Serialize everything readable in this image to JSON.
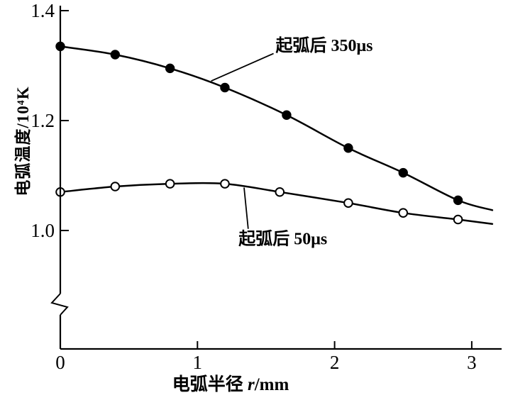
{
  "page": {
    "background": "#ffffff"
  },
  "colors": {
    "stroke": "#000000",
    "background": "#ffffff"
  },
  "chart_data": {
    "type": "line",
    "title": "",
    "xlabel": {
      "prefix": "电弧半径 ",
      "var": "r",
      "suffix": "/mm"
    },
    "ylabel": "电弧温度/10⁴K",
    "xlim": [
      0,
      3.2
    ],
    "ylim": [
      1.0,
      1.4
    ],
    "grid": false,
    "y_axis_break": true,
    "x_ticks": [
      "0",
      "1",
      "2",
      "3"
    ],
    "x_tick_values": [
      0,
      1,
      2,
      3
    ],
    "y_ticks": [
      "1.0",
      "1.2",
      "1.4"
    ],
    "y_tick_values": [
      1.0,
      1.2,
      1.4
    ],
    "series": [
      {
        "name": "起弧后 350μs",
        "marker": "filled-circle",
        "color": "#000000",
        "x": [
          0,
          0.4,
          0.8,
          1.2,
          1.65,
          2.1,
          2.5,
          2.9
        ],
        "y": [
          1.335,
          1.32,
          1.295,
          1.26,
          1.21,
          1.15,
          1.105,
          1.055
        ],
        "line_tail": {
          "x": 3.15,
          "y": 1.037
        }
      },
      {
        "name": "起弧后 50μs",
        "marker": "open-circle",
        "color": "#000000",
        "x": [
          0,
          0.4,
          0.8,
          1.2,
          1.6,
          2.1,
          2.5,
          2.9
        ],
        "y": [
          1.07,
          1.08,
          1.085,
          1.085,
          1.07,
          1.05,
          1.032,
          1.02
        ],
        "line_tail": {
          "x": 3.15,
          "y": 1.012
        }
      }
    ],
    "annotations": [
      {
        "text": "起弧后 350μs",
        "anchor": "start",
        "tx": 1.57,
        "ty": 1.337,
        "leader": {
          "x1": 1.555,
          "y1": 1.322,
          "x2": 1.1,
          "y2": 1.272
        }
      },
      {
        "text": "起弧后 50μs",
        "anchor": "start",
        "tx": 1.3,
        "ty": 0.985,
        "leader": {
          "x1": 1.37,
          "y1": 1.003,
          "x2": 1.34,
          "y2": 1.078
        }
      }
    ]
  }
}
